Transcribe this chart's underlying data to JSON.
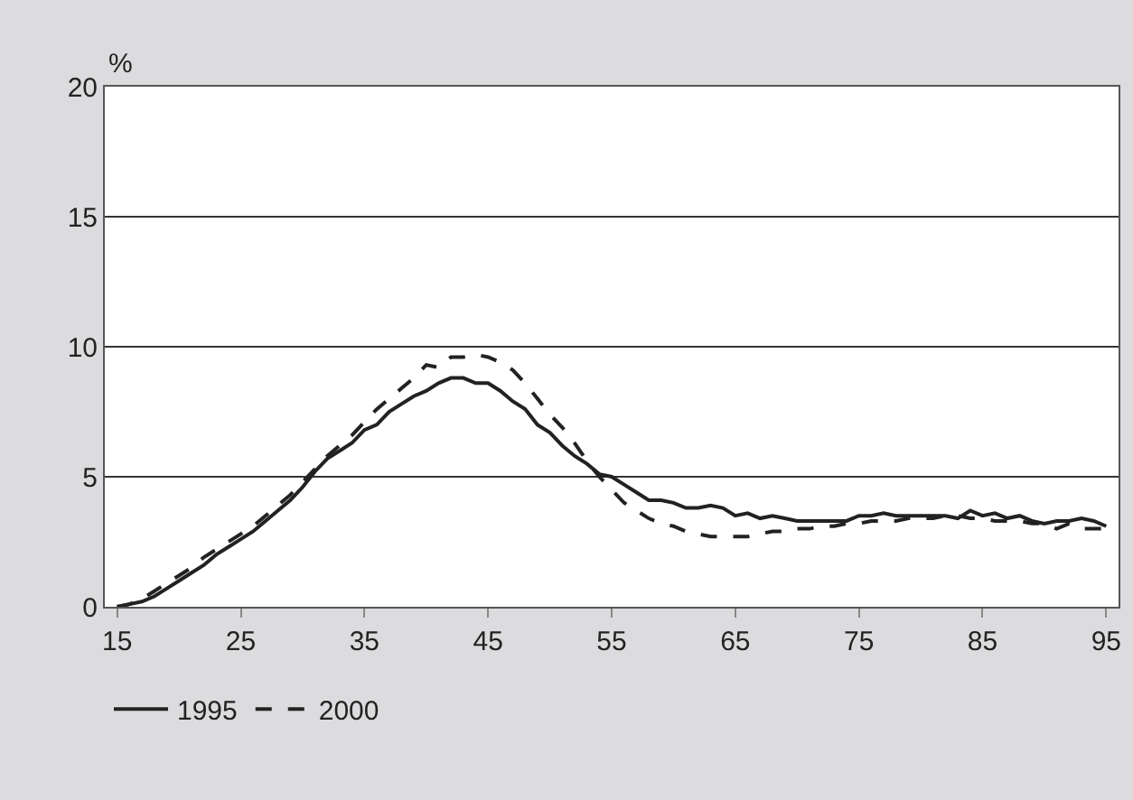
{
  "chart_data": {
    "type": "line",
    "ylabel": "%",
    "x": [
      15,
      16,
      17,
      18,
      19,
      20,
      21,
      22,
      23,
      24,
      25,
      26,
      27,
      28,
      29,
      30,
      31,
      32,
      33,
      34,
      35,
      36,
      37,
      38,
      39,
      40,
      41,
      42,
      43,
      44,
      45,
      46,
      47,
      48,
      49,
      50,
      51,
      52,
      53,
      54,
      55,
      56,
      57,
      58,
      59,
      60,
      61,
      62,
      63,
      64,
      65,
      66,
      67,
      68,
      69,
      70,
      71,
      72,
      73,
      74,
      75,
      76,
      77,
      78,
      79,
      80,
      81,
      82,
      83,
      84,
      85,
      86,
      87,
      88,
      89,
      90,
      91,
      92,
      93,
      94,
      95
    ],
    "series": [
      {
        "name": "1995",
        "color": "#222222",
        "line_style": "solid",
        "values": [
          0,
          0.1,
          0.2,
          0.4,
          0.7,
          1.0,
          1.3,
          1.6,
          2.0,
          2.3,
          2.6,
          2.9,
          3.3,
          3.7,
          4.1,
          4.6,
          5.2,
          5.7,
          6.0,
          6.3,
          6.8,
          7.0,
          7.5,
          7.8,
          8.1,
          8.3,
          8.6,
          8.8,
          8.8,
          8.6,
          8.6,
          8.3,
          7.9,
          7.6,
          7.0,
          6.7,
          6.2,
          5.8,
          5.5,
          5.1,
          5.0,
          4.7,
          4.4,
          4.1,
          4.1,
          4.0,
          3.8,
          3.8,
          3.9,
          3.8,
          3.5,
          3.6,
          3.4,
          3.5,
          3.4,
          3.3,
          3.3,
          3.3,
          3.3,
          3.3,
          3.5,
          3.5,
          3.6,
          3.5,
          3.5,
          3.5,
          3.5,
          3.5,
          3.4,
          3.7,
          3.5,
          3.6,
          3.4,
          3.5,
          3.3,
          3.2,
          3.3,
          3.3,
          3.4,
          3.3,
          3.1
        ]
      },
      {
        "name": "2000",
        "color": "#222222",
        "line_style": "dashed",
        "values": [
          0,
          0.1,
          0.3,
          0.6,
          0.9,
          1.2,
          1.5,
          1.9,
          2.2,
          2.5,
          2.8,
          3.1,
          3.5,
          3.9,
          4.3,
          4.8,
          5.3,
          5.8,
          6.2,
          6.6,
          7.1,
          7.6,
          8.0,
          8.4,
          8.8,
          9.3,
          9.2,
          9.6,
          9.6,
          9.7,
          9.6,
          9.4,
          9.1,
          8.6,
          8.0,
          7.4,
          6.9,
          6.3,
          5.6,
          5.0,
          4.5,
          4.0,
          3.7,
          3.4,
          3.2,
          3.1,
          2.9,
          2.8,
          2.7,
          2.7,
          2.7,
          2.7,
          2.8,
          2.9,
          2.9,
          3.0,
          3.0,
          3.1,
          3.1,
          3.2,
          3.2,
          3.3,
          3.3,
          3.3,
          3.4,
          3.4,
          3.4,
          3.5,
          3.5,
          3.4,
          3.4,
          3.3,
          3.3,
          3.3,
          3.2,
          3.2,
          3.0,
          3.2,
          3.0,
          3.0,
          3.0
        ]
      }
    ],
    "xlim": [
      14,
      96
    ],
    "xticks": [
      15,
      25,
      35,
      45,
      55,
      65,
      75,
      85,
      95
    ],
    "ylim": [
      0,
      20
    ],
    "yticks": [
      0,
      5,
      10,
      15,
      20
    ],
    "grid": "y",
    "legend": "bottom left"
  }
}
